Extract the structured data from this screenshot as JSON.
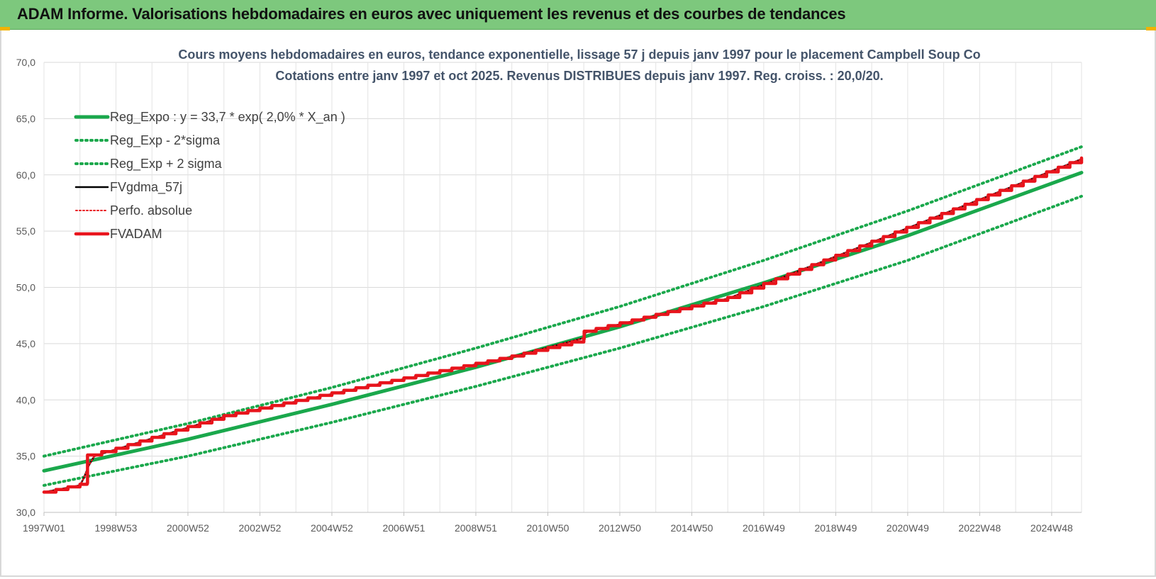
{
  "header": {
    "title": "ADAM Informe. Valorisations hebdomadaires en euros avec uniquement les revenus et des courbes de tendances"
  },
  "colors": {
    "header_bg": "#7dc87d",
    "green": "#1aa84c",
    "red": "#e8141c",
    "black": "#000000",
    "accent": "#f2b200"
  },
  "chart_data": {
    "type": "line",
    "title": "Cours moyens hebdomadaires en euros, tendance exponentielle, lissage 57 j depuis janv 1997 pour le placement Campbell Soup Co",
    "subtitle": "Cotations entre janv 1997 et oct 2025. Revenus DISTRIBUES depuis janv 1997. Reg. croiss. : 20,0/20.",
    "x_ticks": [
      "1997W01",
      "1998W53",
      "2000W52",
      "2002W52",
      "2004W52",
      "2006W51",
      "2008W51",
      "2010W50",
      "2012W50",
      "2014W50",
      "2016W49",
      "2018W49",
      "2020W49",
      "2022W48",
      "2024W48"
    ],
    "x_range": [
      1997.0,
      2025.83
    ],
    "ylim": [
      30,
      70
    ],
    "y_ticks": [
      "30,0",
      "35,0",
      "40,0",
      "45,0",
      "50,0",
      "55,0",
      "60,0",
      "65,0",
      "70,0"
    ],
    "grid": true,
    "legend_position": "top-left",
    "series": [
      {
        "name": "Reg_Expo : y = 33,7 * exp( 2,0% *  X_an )",
        "style": "solid",
        "color": "#1aa84c",
        "x": [
          1997.0,
          2001.0,
          2005.0,
          2009.0,
          2013.0,
          2017.0,
          2021.0,
          2025.83
        ],
        "y": [
          33.7,
          36.5,
          39.6,
          42.9,
          46.5,
          50.4,
          54.6,
          60.2
        ]
      },
      {
        "name": "Reg_Exp - 2*sigma",
        "style": "dotted",
        "color": "#1aa84c",
        "x": [
          1997.0,
          2001.0,
          2005.0,
          2009.0,
          2013.0,
          2017.0,
          2021.0,
          2025.83
        ],
        "y": [
          32.4,
          35.0,
          38.0,
          41.2,
          44.6,
          48.3,
          52.4,
          58.1
        ]
      },
      {
        "name": "Reg_Exp + 2 sigma",
        "style": "dotted",
        "color": "#1aa84c",
        "x": [
          1997.0,
          2001.0,
          2005.0,
          2009.0,
          2013.0,
          2017.0,
          2021.0,
          2025.83
        ],
        "y": [
          35.0,
          37.9,
          41.1,
          44.6,
          48.3,
          52.4,
          56.8,
          62.5
        ]
      },
      {
        "name": "FVgdma_57j",
        "style": "solid",
        "color": "#000000",
        "x": [
          1997.0,
          1998.0,
          1998.1,
          1998.25,
          1998.4,
          1999.0,
          2002.0,
          2006.0,
          2010.0,
          2012.0,
          2012.05,
          2016.0,
          2020.0,
          2025.83
        ],
        "y": [
          31.8,
          32.4,
          33.0,
          34.2,
          35.0,
          35.6,
          38.5,
          41.2,
          43.8,
          45.5,
          46.0,
          49.0,
          54.0,
          61.4
        ]
      },
      {
        "name": "Perfo. absolue",
        "style": "dotted",
        "color": "#e8141c",
        "x": [
          1997.0,
          1998.0,
          1998.1,
          1998.25,
          1998.4,
          1999.0,
          2002.0,
          2006.0,
          2010.0,
          2012.0,
          2012.05,
          2016.0,
          2020.0,
          2025.83
        ],
        "y": [
          31.8,
          32.4,
          33.0,
          34.2,
          35.0,
          35.6,
          38.5,
          41.2,
          43.8,
          45.5,
          46.0,
          49.0,
          54.0,
          61.4
        ]
      },
      {
        "name": "FVADAM",
        "style": "step",
        "color": "#e8141c",
        "x": [
          1997.0,
          1998.0,
          1998.2,
          1998.21,
          1999.0,
          2002.0,
          2006.0,
          2010.0,
          2012.0,
          2012.01,
          2016.0,
          2020.0,
          2025.83
        ],
        "y": [
          31.8,
          32.5,
          32.6,
          35.1,
          35.7,
          38.6,
          41.3,
          43.9,
          45.4,
          46.1,
          49.1,
          54.1,
          61.5
        ]
      }
    ]
  }
}
